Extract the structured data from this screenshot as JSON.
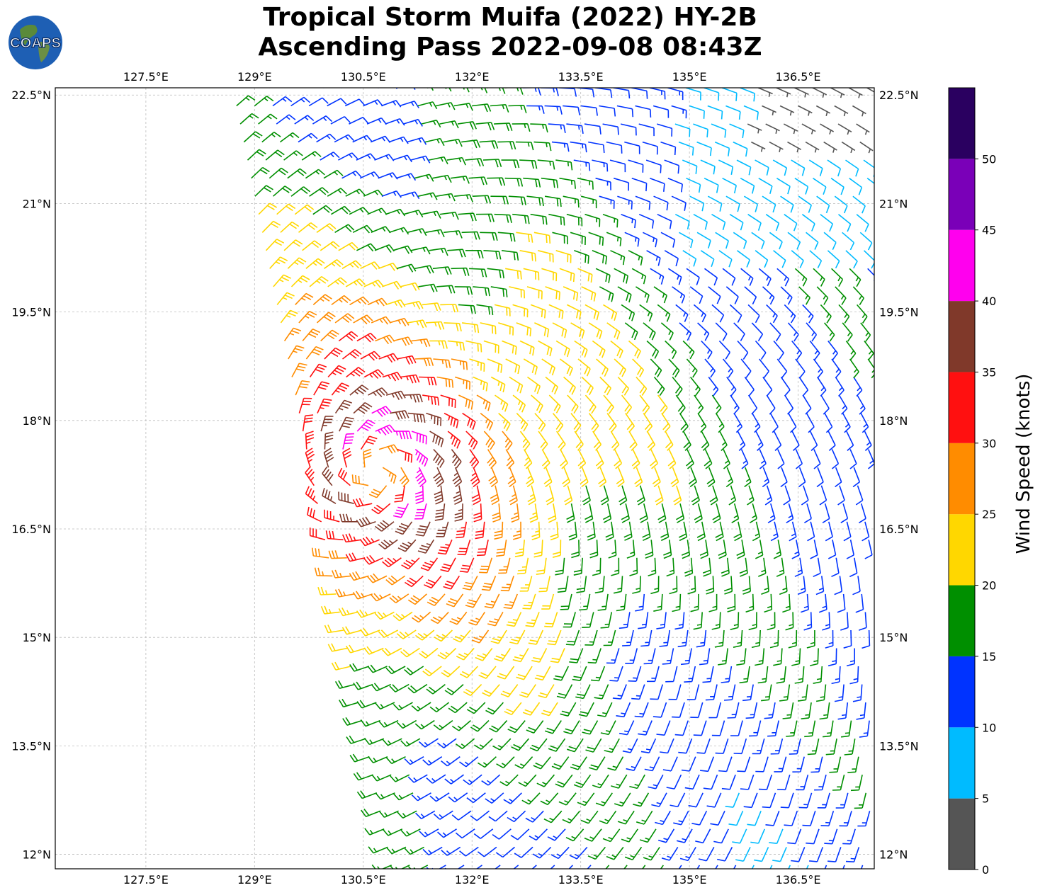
{
  "title": {
    "line1": "Tropical Storm Muifa (2022) HY-2B",
    "line2": "Ascending Pass 2022-09-08 08:43Z"
  },
  "logo": {
    "text": "COAPS",
    "icon": "globe-logo-icon"
  },
  "map": {
    "lon_range": [
      126.25,
      137.55
    ],
    "lat_range": [
      11.8,
      22.6
    ],
    "lon_ticks": [
      127.5,
      129.0,
      130.5,
      132.0,
      133.5,
      135.0,
      136.5
    ],
    "lat_ticks": [
      12.0,
      13.5,
      15.0,
      16.5,
      18.0,
      19.5,
      21.0,
      22.5
    ],
    "lon_tick_labels": [
      "127.5°E",
      "129°E",
      "130.5°E",
      "132°E",
      "133.5°E",
      "135°E",
      "136.5°E"
    ],
    "lat_tick_labels": [
      "12°N",
      "13.5°N",
      "15°N",
      "16.5°N",
      "18°N",
      "19.5°N",
      "21°N",
      "22.5°N"
    ],
    "grid": true,
    "storm_center": {
      "lon": 130.7,
      "lat": 17.3
    },
    "swath_west_edge": {
      "north": [
        128.7,
        22.6
      ],
      "south": [
        130.9,
        11.8
      ]
    },
    "plot_type": "wind barbs"
  },
  "colorbar": {
    "label": "Wind Speed (knots)",
    "ticks": [
      "0",
      "5",
      "10",
      "15",
      "20",
      "25",
      "30",
      "35",
      "40",
      "45",
      "50"
    ],
    "bins": [
      {
        "min": 0,
        "max": 5,
        "color": "#555555"
      },
      {
        "min": 5,
        "max": 10,
        "color": "#00bbff"
      },
      {
        "min": 10,
        "max": 15,
        "color": "#0033ff"
      },
      {
        "min": 15,
        "max": 20,
        "color": "#008f00"
      },
      {
        "min": 20,
        "max": 25,
        "color": "#ffd700"
      },
      {
        "min": 25,
        "max": 30,
        "color": "#ff8c00"
      },
      {
        "min": 30,
        "max": 35,
        "color": "#ff1010"
      },
      {
        "min": 35,
        "max": 40,
        "color": "#80392a"
      },
      {
        "min": 40,
        "max": 45,
        "color": "#ff00ee"
      },
      {
        "min": 45,
        "max": 50,
        "color": "#7a00b8"
      },
      {
        "min": 50,
        "max": 55,
        "color": "#2a0060"
      }
    ]
  }
}
